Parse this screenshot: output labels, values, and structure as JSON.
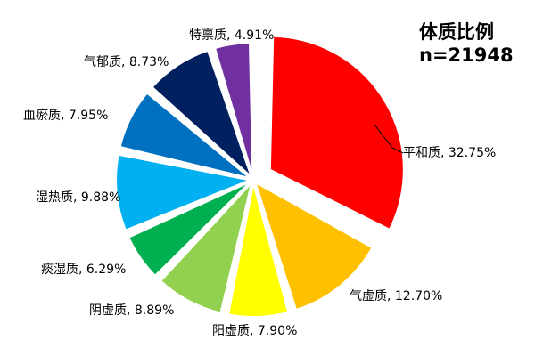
{
  "chart_data": {
    "type": "pie",
    "title": "体质比例",
    "subtitle": "n=21948",
    "slices": [
      {
        "label": "平和质, 32.75%",
        "value": 32.75,
        "color": "#ff0000"
      },
      {
        "label": "气虚质, 12.70%",
        "value": 12.7,
        "color": "#ffc000"
      },
      {
        "label": "阳虚质, 7.90%",
        "value": 7.9,
        "color": "#ffff00"
      },
      {
        "label": "阴虚质, 8.89%",
        "value": 8.89,
        "color": "#92d050"
      },
      {
        "label": "痰湿质, 6.29%",
        "value": 6.29,
        "color": "#00b050"
      },
      {
        "label": "湿热质, 9.88%",
        "value": 9.88,
        "color": "#00b0f0"
      },
      {
        "label": "血瘀质, 7.95%",
        "value": 7.95,
        "color": "#0070c0"
      },
      {
        "label": "气郁质, 8.73%",
        "value": 8.73,
        "color": "#002060"
      },
      {
        "label": "特禀质, 4.91%",
        "value": 4.91,
        "color": "#7030a0"
      }
    ]
  }
}
